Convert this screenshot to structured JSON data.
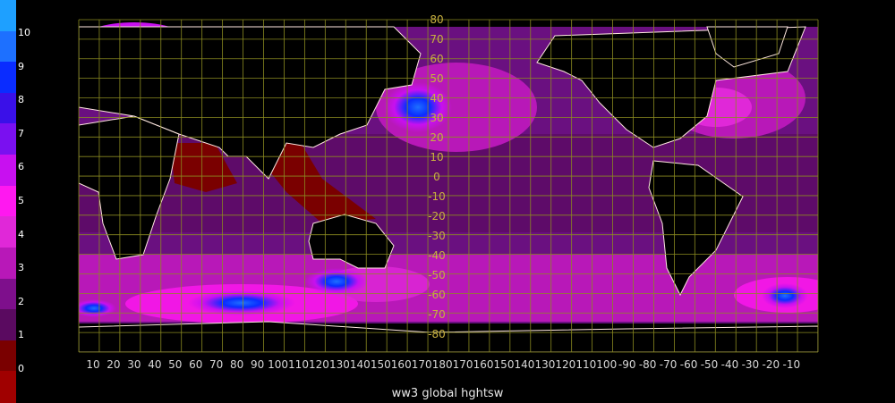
{
  "caption": "ww3 global hghtsw",
  "legend": {
    "levels": [
      "10",
      "9",
      "8",
      "7",
      "6",
      "5",
      "4",
      "3",
      "2",
      "1",
      "0"
    ],
    "colors": [
      "#1ea0ff",
      "#1d70ff",
      "#0a2cff",
      "#3a10e8",
      "#7a10f0",
      "#c810f0",
      "#ff18f0",
      "#e028d8",
      "#b818b8",
      "#7e0f8c",
      "#5a0a60",
      "#7a0000",
      "#a00000"
    ]
  },
  "map": {
    "longitude_labels": [
      "10",
      "20",
      "30",
      "40",
      "50",
      "60",
      "70",
      "80",
      "90",
      "100",
      "110",
      "120",
      "130",
      "140",
      "150",
      "160",
      "170",
      "180",
      "170",
      "160",
      "150",
      "140",
      "130",
      "120",
      "110",
      "100",
      "-90",
      "-80",
      "-70",
      "-60",
      "-50",
      "-40",
      "-30",
      "-20",
      "-10"
    ],
    "latitude_labels": [
      "80",
      "70",
      "60",
      "50",
      "40",
      "30",
      "20",
      "10",
      "0",
      "-10",
      "-20",
      "-30",
      "-40",
      "-50",
      "-60",
      "-70",
      "-80"
    ],
    "grid_color": "#8a8a20",
    "ocean_base_color": "#6a1080",
    "land_color": "#000000",
    "coast_color": "#ffe8e0"
  }
}
